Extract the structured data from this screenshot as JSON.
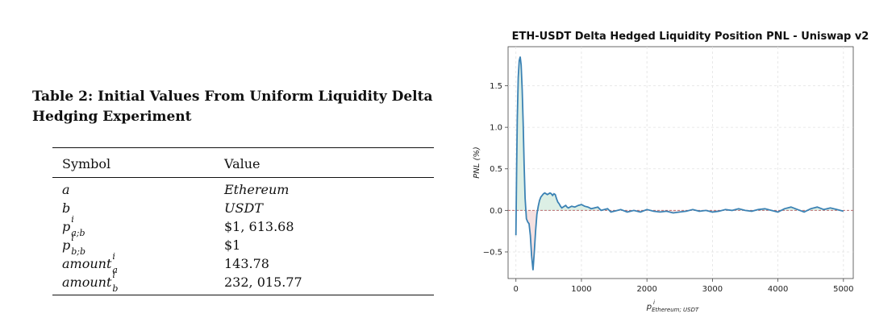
{
  "caption": "Table 2: Initial Values From Uniform Liquidity Delta Hedging Experiment",
  "table": {
    "headers": [
      "Symbol",
      "Value"
    ],
    "rows": [
      {
        "symbol": "a",
        "value": "Ethereum"
      },
      {
        "symbol": "b",
        "value": "USDT"
      },
      {
        "symbol": "p",
        "sup": "i",
        "sub": "a;b",
        "value": "$1, 613.68"
      },
      {
        "symbol": "p",
        "sup": "i",
        "sub": "b;b",
        "value": "$1"
      },
      {
        "symbol": "amount",
        "sup": "i",
        "sub": "a",
        "value": "143.78"
      },
      {
        "symbol": "amount",
        "sup": "i",
        "sub": "b",
        "value": "232, 015.77"
      }
    ]
  },
  "chart_data": {
    "type": "line",
    "title": "ETH-USDT Delta Hedged Liquidity Position PNL - Uniswap v2",
    "ylabel": "PNL (%)",
    "xlabel": "p",
    "xlabel_sup": "i",
    "xlabel_sub": "Ethereum; USDT",
    "xlim": [
      -120,
      5150
    ],
    "ylim": [
      -0.82,
      1.97
    ],
    "xticks": [
      0,
      1000,
      2000,
      3000,
      4000,
      5000
    ],
    "yticks": [
      -0.5,
      0.0,
      0.5,
      1.0,
      1.5
    ],
    "grid": true,
    "line_color": "#3b82b4",
    "fill_positive_color": "#d6ece0",
    "fill_negative_color": "#f5dcdc",
    "zero_line_color": "#b2595c",
    "series": [
      {
        "x": [
          0,
          10,
          20,
          35,
          50,
          65,
          80,
          95,
          110,
          125,
          140,
          160,
          180,
          200,
          220,
          240,
          260,
          280,
          300,
          320,
          340,
          360,
          380,
          400,
          420,
          440,
          460,
          480,
          500,
          520,
          540,
          560,
          580,
          600,
          620,
          640,
          660,
          680,
          700,
          720,
          740,
          760,
          780,
          800,
          850,
          900,
          950,
          1000,
          1050,
          1100,
          1150,
          1200,
          1250,
          1300,
          1350,
          1400,
          1450,
          1500,
          1550,
          1600,
          1700,
          1800,
          1900,
          2000,
          2100,
          2200,
          2300,
          2400,
          2500,
          2600,
          2700,
          2800,
          2900,
          3000,
          3100,
          3200,
          3300,
          3400,
          3500,
          3600,
          3700,
          3800,
          3900,
          4000,
          4100,
          4200,
          4300,
          4400,
          4500,
          4600,
          4700,
          4800,
          4900,
          5000
        ],
        "y": [
          -0.3,
          0.5,
          1.1,
          1.6,
          1.8,
          1.85,
          1.75,
          1.45,
          1.05,
          0.55,
          0.15,
          -0.1,
          -0.14,
          -0.16,
          -0.3,
          -0.55,
          -0.72,
          -0.5,
          -0.25,
          -0.05,
          0.05,
          0.12,
          0.16,
          0.18,
          0.2,
          0.21,
          0.2,
          0.19,
          0.2,
          0.21,
          0.2,
          0.18,
          0.2,
          0.19,
          0.14,
          0.1,
          0.08,
          0.05,
          0.03,
          0.04,
          0.05,
          0.06,
          0.04,
          0.03,
          0.05,
          0.04,
          0.06,
          0.07,
          0.05,
          0.04,
          0.02,
          0.03,
          0.04,
          0.0,
          0.01,
          0.02,
          -0.02,
          -0.01,
          0.0,
          0.01,
          -0.02,
          0.0,
          -0.02,
          0.01,
          -0.01,
          -0.02,
          -0.01,
          -0.03,
          -0.02,
          -0.01,
          0.01,
          -0.01,
          0.0,
          -0.02,
          -0.01,
          0.01,
          0.0,
          0.02,
          0.0,
          -0.01,
          0.01,
          0.02,
          0.0,
          -0.02,
          0.02,
          0.04,
          0.01,
          -0.02,
          0.02,
          0.04,
          0.01,
          0.03,
          0.01,
          -0.01
        ]
      }
    ]
  }
}
